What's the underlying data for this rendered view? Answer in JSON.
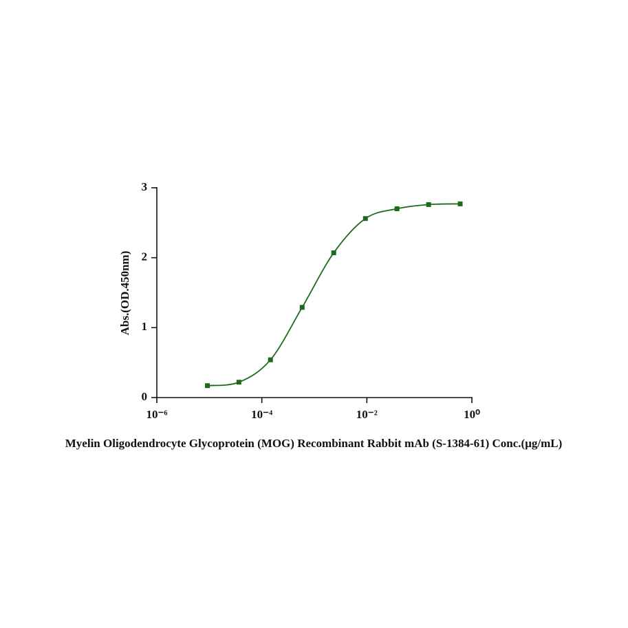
{
  "chart_data": {
    "type": "scatter",
    "xlabel": "Myelin Oligodendrocyte Glycoprotein (MOG) Recombinant Rabbit mAb (S-1384-61) Conc.(μg/mL)",
    "ylabel": "Abs.(OD.450nm)",
    "xscale": "log",
    "xlim": [
      1e-06,
      1
    ],
    "xticks": [
      {
        "value": 1e-06,
        "label": "10⁻⁶"
      },
      {
        "value": 0.0001,
        "label": "10⁻⁴"
      },
      {
        "value": 0.01,
        "label": "10⁻²"
      },
      {
        "value": 1,
        "label": "10⁰"
      }
    ],
    "ylim": [
      0,
      3
    ],
    "yticks": [
      0,
      1,
      2,
      3
    ],
    "fit_curve": true,
    "series": [
      {
        "color": "#1b6b1b",
        "x": [
          9.2e-06,
          3.66e-05,
          0.000146,
          0.000586,
          0.00234,
          0.0094,
          0.0375,
          0.15,
          0.6
        ],
        "values": [
          0.17,
          0.22,
          0.54,
          1.29,
          2.07,
          2.56,
          2.7,
          2.76,
          2.77
        ]
      }
    ]
  }
}
